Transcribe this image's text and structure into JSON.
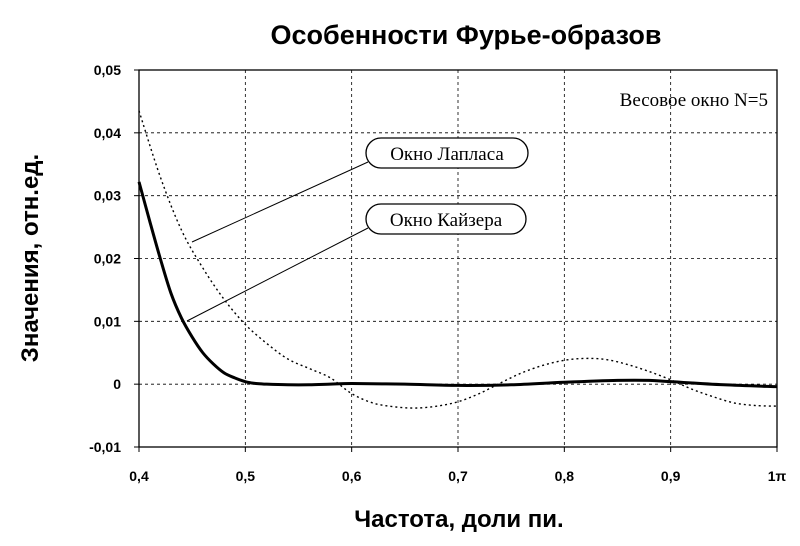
{
  "chart_data": {
    "type": "line",
    "title": "Особенности Фурье-образов",
    "xlabel": "Частота, доли пи.",
    "ylabel": "Значения, отн.ед.",
    "xlim": [
      0.4,
      1.0
    ],
    "ylim": [
      -0.01,
      0.05
    ],
    "x_tick_labels": [
      "0,4",
      "0,5",
      "0,6",
      "0,7",
      "0,8",
      "0,9",
      "1π"
    ],
    "y_tick_labels": [
      "-0,01",
      "0",
      "0,01",
      "0,02",
      "0,03",
      "0,04",
      "0,05"
    ],
    "grid": true,
    "annotation": "Весовое окно N=5",
    "series": [
      {
        "name": "Окно Лапласа",
        "style": "dotted",
        "x": [
          0.4,
          0.42,
          0.44,
          0.46,
          0.48,
          0.5,
          0.52,
          0.54,
          0.56,
          0.58,
          0.6,
          0.62,
          0.64,
          0.66,
          0.68,
          0.7,
          0.72,
          0.74,
          0.76,
          0.78,
          0.8,
          0.82,
          0.84,
          0.86,
          0.88,
          0.9,
          0.92,
          0.94,
          0.96,
          0.98,
          1.0
        ],
        "y": [
          0.0435,
          0.033,
          0.0245,
          0.0185,
          0.0135,
          0.0095,
          0.0065,
          0.004,
          0.0025,
          0.001,
          -0.0015,
          -0.003,
          -0.0036,
          -0.0038,
          -0.0035,
          -0.0028,
          -0.0015,
          0.0002,
          0.0018,
          0.003,
          0.0038,
          0.0041,
          0.0039,
          0.0031,
          0.002,
          0.0007,
          -0.0008,
          -0.002,
          -0.003,
          -0.0034,
          -0.0035
        ]
      },
      {
        "name": "Окно Кайзера",
        "style": "solid",
        "x": [
          0.4,
          0.41,
          0.42,
          0.43,
          0.44,
          0.45,
          0.46,
          0.47,
          0.48,
          0.49,
          0.5,
          0.51,
          0.52,
          0.54,
          0.56,
          0.58,
          0.6,
          0.65,
          0.7,
          0.75,
          0.8,
          0.85,
          0.88,
          0.9,
          0.95,
          1.0
        ],
        "y": [
          0.0322,
          0.026,
          0.02,
          0.0145,
          0.0105,
          0.0075,
          0.005,
          0.0032,
          0.0018,
          0.001,
          0.0004,
          0.0001,
          0.0,
          -0.0001,
          -0.0001,
          0.0,
          0.0001,
          0.0,
          -0.0002,
          -0.0001,
          0.0003,
          0.0006,
          0.0006,
          0.0004,
          -0.0001,
          -0.0004
        ]
      }
    ]
  }
}
